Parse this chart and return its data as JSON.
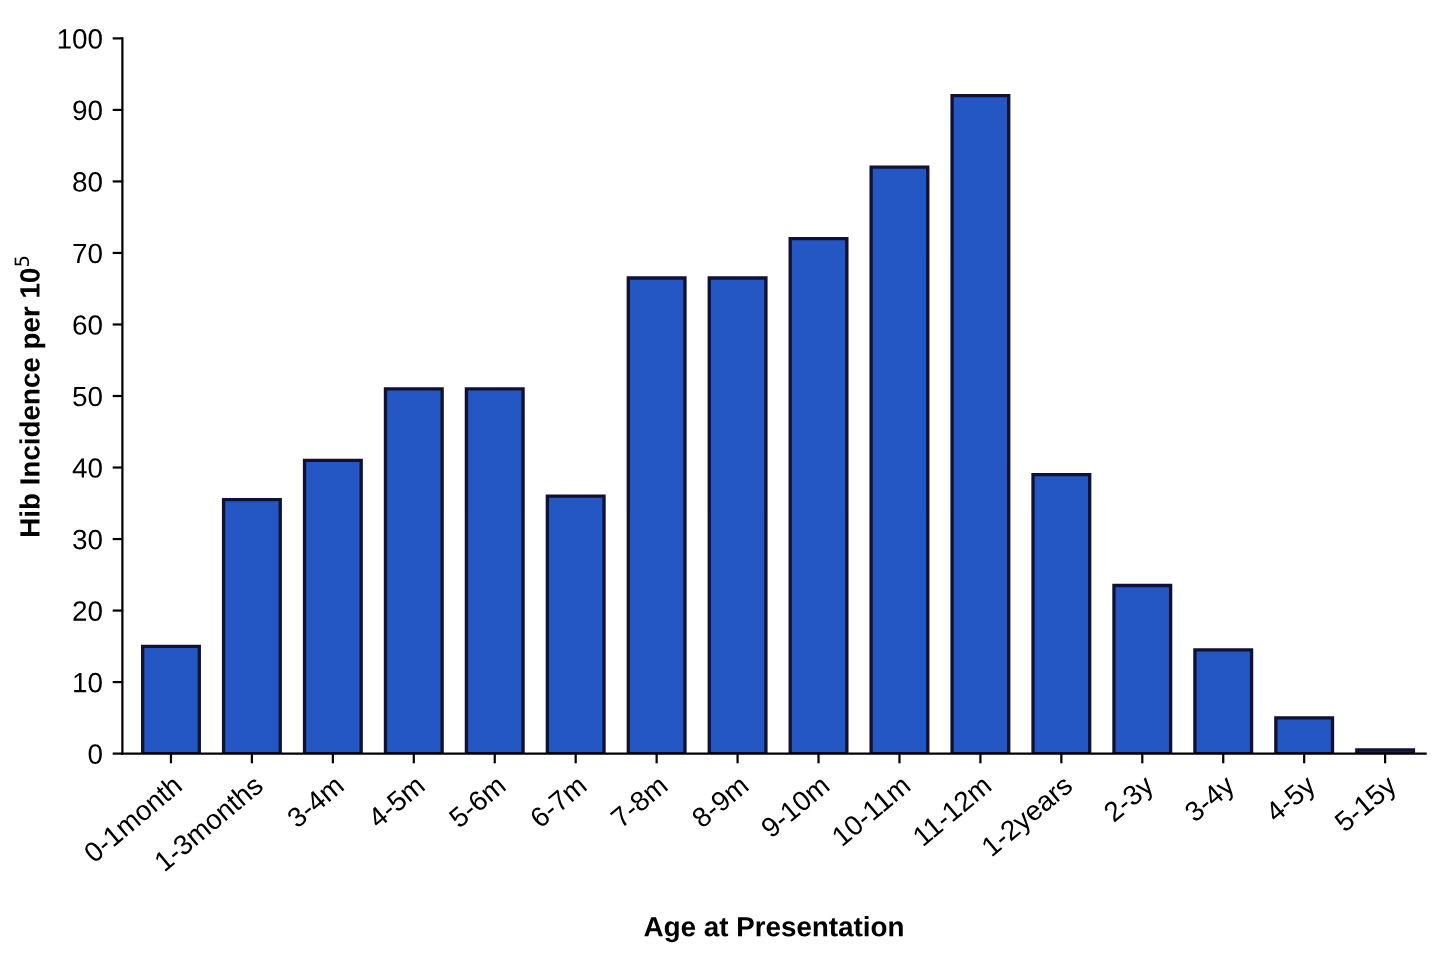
{
  "chart_data": {
    "type": "bar",
    "xlabel": "Age at Presentation",
    "ylabel": "Hib Incidence per 10$^{5}$",
    "categories": [
      "0-1month",
      "1-3months",
      "3-4m",
      "4-5m",
      "5-6m",
      "6-7m",
      "7-8m",
      "8-9m",
      "9-10m",
      "10-11m",
      "11-12m",
      "1-2years",
      "2-3y",
      "3-4y",
      "4-5y",
      "5-15y"
    ],
    "values": [
      15,
      35.5,
      41,
      51,
      51,
      36,
      66.5,
      66.5,
      72,
      82,
      92,
      39,
      23.5,
      14.5,
      5,
      0.5
    ],
    "color": "#2457c4",
    "ylim": [
      0,
      100
    ],
    "yticks": [
      0,
      10,
      20,
      30,
      40,
      50,
      60,
      70,
      80,
      90,
      100
    ],
    "grid": false,
    "legend": false
  }
}
